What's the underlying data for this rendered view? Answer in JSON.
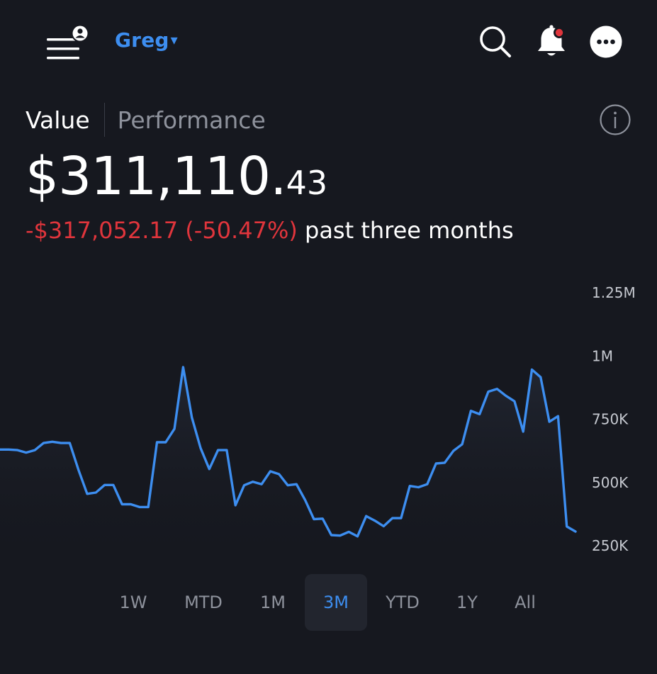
{
  "header": {
    "account_name": "Greg",
    "caret": "▾",
    "icons": {
      "menu": "menu-profile-icon",
      "search": "search-icon",
      "bell": "bell-icon",
      "more": "more-icon"
    },
    "notification_dot_color": "#e0353c"
  },
  "tabs": {
    "value": "Value",
    "performance": "Performance",
    "info_icon": "info-icon"
  },
  "portfolio": {
    "value_main": "$311,110.",
    "value_cents": "43",
    "change": "-$317,052.17 (-50.47%)",
    "period": "past three months"
  },
  "colors": {
    "accent": "#3d8ef0",
    "negative": "#e0353c",
    "background": "#16181f"
  },
  "chart_data": {
    "type": "line",
    "y_ticks": [
      "1.25M",
      "1M",
      "750K",
      "500K",
      "250K"
    ],
    "ylim": [
      250000,
      1250000
    ],
    "series": [
      {
        "values": [
          630000,
          630000,
          628000,
          618000,
          628000,
          656000,
          661000,
          656000,
          656000,
          550000,
          455000,
          460000,
          490000,
          490000,
          414000,
          414000,
          403000,
          403000,
          659000,
          659000,
          712000,
          956000,
          757000,
          636000,
          553000,
          628000,
          628000,
          410000,
          489000,
          503000,
          493000,
          544000,
          533000,
          489000,
          493000,
          430000,
          355000,
          357000,
          292000,
          290000,
          305000,
          287000,
          367000,
          349000,
          327000,
          359000,
          359000,
          486000,
          481000,
          493000,
          575000,
          578000,
          625000,
          651000,
          783000,
          770000,
          859000,
          870000,
          843000,
          821000,
          701000,
          946000,
          916000,
          740000,
          762000,
          326000,
          306000
        ]
      }
    ]
  },
  "range_selector": {
    "options": [
      "1W",
      "MTD",
      "1M",
      "3M",
      "YTD",
      "1Y",
      "All"
    ],
    "selected": "3M"
  }
}
